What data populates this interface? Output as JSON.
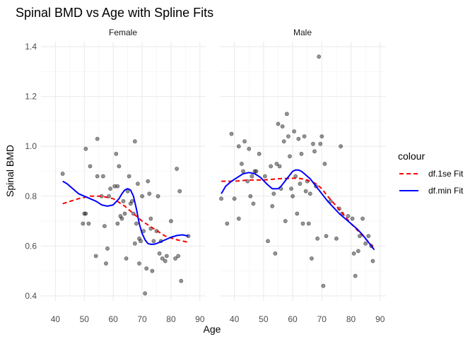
{
  "chart_data": {
    "type": "scatter",
    "title": "Spinal BMD vs Age with Spline Fits",
    "xlabel": "Age",
    "ylabel": "Spinal BMD",
    "xlim": [
      35,
      92
    ],
    "ylim": [
      0.38,
      1.42
    ],
    "x_ticks": [
      "40",
      "50",
      "60",
      "70",
      "80",
      "90"
    ],
    "y_ticks": [
      "0.4",
      "0.6",
      "0.8",
      "1.0",
      "1.2",
      "1.4"
    ],
    "grid": true,
    "legend_position": "right",
    "legend": {
      "title": "colour",
      "entries": [
        {
          "label": "df.1se Fit",
          "color": "#ff0000",
          "style": "dashed"
        },
        {
          "label": "df.min Fit",
          "color": "#0000ff",
          "style": "solid"
        }
      ]
    },
    "panels": [
      {
        "name": "Female",
        "points": [
          [
            42.5,
            0.89
          ],
          [
            49.5,
            0.69
          ],
          [
            50,
            0.73
          ],
          [
            50.5,
            0.73
          ],
          [
            50.5,
            0.99
          ],
          [
            51.5,
            0.69
          ],
          [
            52,
            0.92
          ],
          [
            54,
            0.56
          ],
          [
            54.5,
            0.88
          ],
          [
            54.5,
            1.03
          ],
          [
            56,
            0.8
          ],
          [
            56.5,
            0.88
          ],
          [
            57,
            0.68
          ],
          [
            57.5,
            0.53
          ],
          [
            58,
            0.59
          ],
          [
            58.5,
            0.8
          ],
          [
            59,
            0.83
          ],
          [
            60.5,
            0.84
          ],
          [
            61,
            0.97
          ],
          [
            61.5,
            0.69
          ],
          [
            61.5,
            0.84
          ],
          [
            62,
            0.92
          ],
          [
            62.5,
            0.72
          ],
          [
            63,
            0.71
          ],
          [
            63.5,
            0.78
          ],
          [
            64,
            0.73
          ],
          [
            64.5,
            0.55
          ],
          [
            65,
            0.82
          ],
          [
            65.5,
            0.88
          ],
          [
            66,
            0.77
          ],
          [
            66.5,
            0.78
          ],
          [
            67,
            0.73
          ],
          [
            67.5,
            0.61
          ],
          [
            67.5,
            1.02
          ],
          [
            68,
            0.69
          ],
          [
            68.5,
            0.85
          ],
          [
            69,
            0.53
          ],
          [
            69,
            0.63
          ],
          [
            69.5,
            0.62
          ],
          [
            70,
            0.8
          ],
          [
            70.5,
            0.66
          ],
          [
            71,
            0.41
          ],
          [
            71.5,
            0.51
          ],
          [
            72,
            0.86
          ],
          [
            72.5,
            0.81
          ],
          [
            73,
            0.71
          ],
          [
            73,
            0.67
          ],
          [
            73.5,
            0.5
          ],
          [
            74,
            0.62
          ],
          [
            75,
            0.66
          ],
          [
            75.5,
            0.8
          ],
          [
            76,
            0.57
          ],
          [
            76.5,
            0.62
          ],
          [
            77,
            0.55
          ],
          [
            78,
            0.54
          ],
          [
            78.5,
            0.56
          ],
          [
            80,
            0.7
          ],
          [
            81.5,
            0.55
          ],
          [
            82,
            0.91
          ],
          [
            82.5,
            0.56
          ],
          [
            83,
            0.82
          ],
          [
            83.5,
            0.46
          ],
          [
            86,
            0.64
          ]
        ],
        "series": [
          {
            "name": "df.1se Fit",
            "x": [
              42.5,
              48,
              52,
              56,
              60,
              64,
              66,
              68,
              70,
              74,
              78,
              82,
              86
            ],
            "y": [
              0.77,
              0.79,
              0.8,
              0.8,
              0.79,
              0.76,
              0.74,
              0.72,
              0.7,
              0.67,
              0.64,
              0.625,
              0.615
            ]
          },
          {
            "name": "df.min Fit",
            "x": [
              42.5,
              44,
              46,
              48,
              50,
              52,
              54,
              56,
              58,
              60,
              62,
              63,
              64,
              65,
              66,
              67,
              68,
              69,
              70,
              71,
              72,
              73,
              74,
              75,
              76,
              78,
              80,
              82,
              84,
              86
            ],
            "y": [
              0.86,
              0.85,
              0.83,
              0.81,
              0.8,
              0.79,
              0.78,
              0.765,
              0.76,
              0.765,
              0.79,
              0.81,
              0.825,
              0.83,
              0.825,
              0.8,
              0.75,
              0.69,
              0.65,
              0.625,
              0.61,
              0.607,
              0.607,
              0.61,
              0.615,
              0.625,
              0.635,
              0.642,
              0.645,
              0.64
            ]
          }
        ]
      },
      {
        "name": "Male",
        "points": [
          [
            35.5,
            0.79
          ],
          [
            37.5,
            0.69
          ],
          [
            39,
            1.05
          ],
          [
            40,
            0.79
          ],
          [
            41.5,
            0.71
          ],
          [
            41.5,
            1.0
          ],
          [
            42.5,
            0.93
          ],
          [
            43,
            0.9
          ],
          [
            43.5,
            1.02
          ],
          [
            44.5,
            0.86
          ],
          [
            45,
            0.99
          ],
          [
            45.5,
            0.8
          ],
          [
            46,
            0.88
          ],
          [
            46.5,
            0.77
          ],
          [
            47,
            0.9
          ],
          [
            47.5,
            0.9
          ],
          [
            48.5,
            0.97
          ],
          [
            50.5,
            0.88
          ],
          [
            51.5,
            0.62
          ],
          [
            52.5,
            0.92
          ],
          [
            53,
            0.76
          ],
          [
            53.5,
            0.81
          ],
          [
            54,
            0.57
          ],
          [
            54.5,
            0.93
          ],
          [
            55,
            1.09
          ],
          [
            55.5,
            0.92
          ],
          [
            56,
            0.83
          ],
          [
            56.5,
            1.08
          ],
          [
            57,
            1.02
          ],
          [
            57.5,
            0.7
          ],
          [
            58,
            1.13
          ],
          [
            58.5,
            1.04
          ],
          [
            59,
            0.96
          ],
          [
            59.5,
            0.83
          ],
          [
            60,
            0.8
          ],
          [
            60.5,
            1.06
          ],
          [
            61,
            0.88
          ],
          [
            61.5,
            0.73
          ],
          [
            62,
            1.03
          ],
          [
            62.5,
            0.85
          ],
          [
            63,
            0.97
          ],
          [
            63.5,
            0.69
          ],
          [
            64,
            1.04
          ],
          [
            64.5,
            0.82
          ],
          [
            65,
            0.86
          ],
          [
            65.5,
            0.69
          ],
          [
            66,
            0.81
          ],
          [
            66.5,
            0.55
          ],
          [
            67,
            1.01
          ],
          [
            67.5,
            0.98
          ],
          [
            68,
            0.84
          ],
          [
            68.5,
            0.63
          ],
          [
            69,
            1.36
          ],
          [
            69.5,
            1.01
          ],
          [
            70,
            1.04
          ],
          [
            70.5,
            0.44
          ],
          [
            71,
            0.93
          ],
          [
            71.5,
            0.64
          ],
          [
            73,
            0.78
          ],
          [
            75,
            0.63
          ],
          [
            76,
            0.75
          ],
          [
            76.5,
            1.0
          ],
          [
            77,
            0.73
          ],
          [
            79,
            0.72
          ],
          [
            80.5,
            0.71
          ],
          [
            81,
            0.57
          ],
          [
            81.5,
            0.48
          ],
          [
            82.5,
            0.58
          ],
          [
            83,
            0.64
          ],
          [
            84,
            0.71
          ],
          [
            85,
            0.61
          ],
          [
            86,
            0.64
          ],
          [
            87,
            0.6
          ],
          [
            87.5,
            0.54
          ]
        ],
        "series": [
          {
            "name": "df.1se Fit",
            "x": [
              35.5,
              40,
              45,
              50,
              55,
              60,
              62,
              64,
              66,
              68,
              70,
              72,
              75,
              80,
              85,
              88
            ],
            "y": [
              0.86,
              0.86,
              0.865,
              0.865,
              0.87,
              0.872,
              0.872,
              0.868,
              0.86,
              0.85,
              0.83,
              0.8,
              0.76,
              0.69,
              0.63,
              0.59
            ]
          },
          {
            "name": "df.min Fit",
            "x": [
              35.5,
              37,
              39,
              41,
              43,
              45,
              47,
              49,
              51,
              53,
              55,
              56,
              58,
              60,
              61,
              62,
              63,
              64,
              66,
              68,
              70,
              72,
              74,
              76,
              78,
              80,
              82,
              84,
              86,
              88
            ],
            "y": [
              0.81,
              0.84,
              0.86,
              0.875,
              0.89,
              0.895,
              0.89,
              0.875,
              0.85,
              0.83,
              0.83,
              0.84,
              0.87,
              0.9,
              0.905,
              0.905,
              0.9,
              0.89,
              0.87,
              0.84,
              0.81,
              0.78,
              0.755,
              0.73,
              0.71,
              0.69,
              0.67,
              0.645,
              0.615,
              0.585
            ]
          }
        ]
      }
    ]
  }
}
